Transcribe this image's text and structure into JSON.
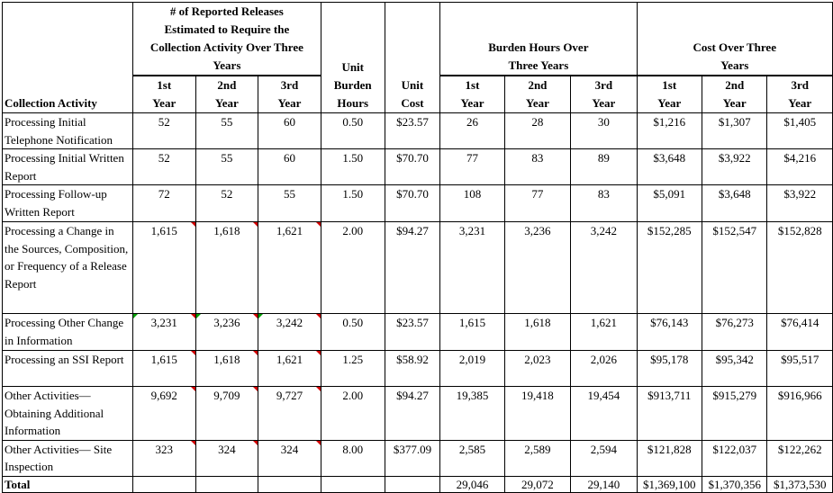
{
  "header": {
    "activity": "Collection Activity",
    "releases_group": "# of Reported Releases Estimated to Require the Collection Activity Over Three Years",
    "unit_burden_hours": "Unit Burden Hours",
    "unit_cost": "Unit Cost",
    "burden_group": "Burden Hours Over Three Years",
    "cost_group": "Cost Over Three Years",
    "years": [
      "1st Year",
      "2nd Year",
      "3rd Year"
    ]
  },
  "rows": [
    {
      "activity": "Processing Initial Telephone Notification",
      "releases": [
        "52",
        "55",
        "60"
      ],
      "unit_hours": "0.50",
      "unit_cost": "$23.57",
      "hours": [
        "26",
        "28",
        "30"
      ],
      "cost": [
        "$1,216",
        "$1,307",
        "$1,405"
      ],
      "comment_marks": false,
      "green_marks": false
    },
    {
      "activity": "Processing Initial Written Report",
      "releases": [
        "52",
        "55",
        "60"
      ],
      "unit_hours": "1.50",
      "unit_cost": "$70.70",
      "hours": [
        "77",
        "83",
        "89"
      ],
      "cost": [
        "$3,648",
        "$3,922",
        "$4,216"
      ],
      "comment_marks": false,
      "green_marks": false
    },
    {
      "activity": "Processing Follow-up Written Report",
      "releases": [
        "72",
        "52",
        "55"
      ],
      "unit_hours": "1.50",
      "unit_cost": "$70.70",
      "hours": [
        "108",
        "77",
        "83"
      ],
      "cost": [
        "$5,091",
        "$3,648",
        "$3,922"
      ],
      "comment_marks": false,
      "green_marks": false
    },
    {
      "activity": "Processing a Change in the Sources, Composition, or Frequency of a Release Report",
      "releases": [
        "1,615",
        "1,618",
        "1,621"
      ],
      "unit_hours": "2.00",
      "unit_cost": "$94.27",
      "hours": [
        "3,231",
        "3,236",
        "3,242"
      ],
      "cost": [
        "$152,285",
        "$152,547",
        "$152,828"
      ],
      "comment_marks": true,
      "green_marks": false
    },
    {
      "activity": "Processing Other Change in Information",
      "releases": [
        "3,231",
        "3,236",
        "3,242"
      ],
      "unit_hours": "0.50",
      "unit_cost": "$23.57",
      "hours": [
        "1,615",
        "1,618",
        "1,621"
      ],
      "cost": [
        "$76,143",
        "$76,273",
        "$76,414"
      ],
      "comment_marks": true,
      "green_marks": true
    },
    {
      "activity": "Processing an SSI Report",
      "releases": [
        "1,615",
        "1,618",
        "1,621"
      ],
      "unit_hours": "1.25",
      "unit_cost": "$58.92",
      "hours": [
        "2,019",
        "2,023",
        "2,026"
      ],
      "cost": [
        "$95,178",
        "$95,342",
        "$95,517"
      ],
      "comment_marks": true,
      "green_marks": false
    },
    {
      "activity": "Other Activities— Obtaining Additional Information",
      "releases": [
        "9,692",
        "9,709",
        "9,727"
      ],
      "unit_hours": "2.00",
      "unit_cost": "$94.27",
      "hours": [
        "19,385",
        "19,418",
        "19,454"
      ],
      "cost": [
        "$913,711",
        "$915,279",
        "$916,966"
      ],
      "comment_marks": true,
      "green_marks": false
    },
    {
      "activity": "Other Activities— Site Inspection",
      "releases": [
        "323",
        "324",
        "324"
      ],
      "unit_hours": "8.00",
      "unit_cost": "$377.09",
      "hours": [
        "2,585",
        "2,589",
        "2,594"
      ],
      "cost": [
        "$121,828",
        "$122,037",
        "$122,262"
      ],
      "comment_marks": true,
      "green_marks": false
    }
  ],
  "total": {
    "label": "Total",
    "hours": [
      "29,046",
      "29,072",
      "29,140"
    ],
    "cost": [
      "$1,369,100",
      "$1,370,356",
      "$1,373,530"
    ]
  }
}
